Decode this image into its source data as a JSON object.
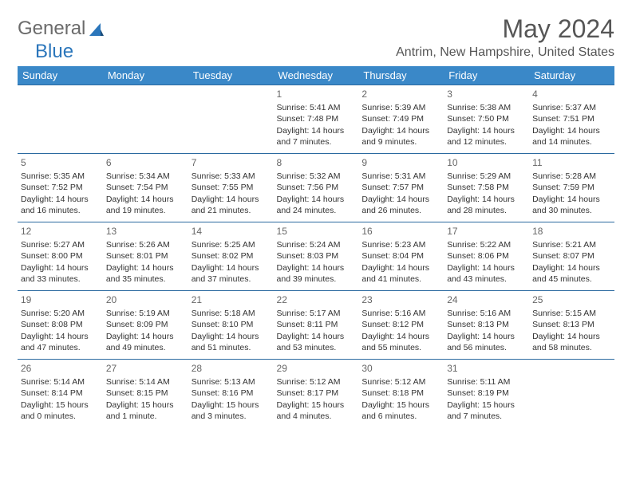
{
  "logo": {
    "general": "General",
    "blue": "Blue"
  },
  "title": "May 2024",
  "location": "Antrim, New Hampshire, United States",
  "colors": {
    "header_bg": "#3a88c8",
    "header_text": "#ffffff",
    "border": "#2b6aa0",
    "text": "#333333",
    "title_text": "#565656",
    "logo_gray": "#6b6b6b",
    "logo_blue": "#2b76bb"
  },
  "day_headers": [
    "Sunday",
    "Monday",
    "Tuesday",
    "Wednesday",
    "Thursday",
    "Friday",
    "Saturday"
  ],
  "weeks": [
    [
      null,
      null,
      null,
      {
        "n": "1",
        "sr": "5:41 AM",
        "ss": "7:48 PM",
        "dl": "14 hours and 7 minutes."
      },
      {
        "n": "2",
        "sr": "5:39 AM",
        "ss": "7:49 PM",
        "dl": "14 hours and 9 minutes."
      },
      {
        "n": "3",
        "sr": "5:38 AM",
        "ss": "7:50 PM",
        "dl": "14 hours and 12 minutes."
      },
      {
        "n": "4",
        "sr": "5:37 AM",
        "ss": "7:51 PM",
        "dl": "14 hours and 14 minutes."
      }
    ],
    [
      {
        "n": "5",
        "sr": "5:35 AM",
        "ss": "7:52 PM",
        "dl": "14 hours and 16 minutes."
      },
      {
        "n": "6",
        "sr": "5:34 AM",
        "ss": "7:54 PM",
        "dl": "14 hours and 19 minutes."
      },
      {
        "n": "7",
        "sr": "5:33 AM",
        "ss": "7:55 PM",
        "dl": "14 hours and 21 minutes."
      },
      {
        "n": "8",
        "sr": "5:32 AM",
        "ss": "7:56 PM",
        "dl": "14 hours and 24 minutes."
      },
      {
        "n": "9",
        "sr": "5:31 AM",
        "ss": "7:57 PM",
        "dl": "14 hours and 26 minutes."
      },
      {
        "n": "10",
        "sr": "5:29 AM",
        "ss": "7:58 PM",
        "dl": "14 hours and 28 minutes."
      },
      {
        "n": "11",
        "sr": "5:28 AM",
        "ss": "7:59 PM",
        "dl": "14 hours and 30 minutes."
      }
    ],
    [
      {
        "n": "12",
        "sr": "5:27 AM",
        "ss": "8:00 PM",
        "dl": "14 hours and 33 minutes."
      },
      {
        "n": "13",
        "sr": "5:26 AM",
        "ss": "8:01 PM",
        "dl": "14 hours and 35 minutes."
      },
      {
        "n": "14",
        "sr": "5:25 AM",
        "ss": "8:02 PM",
        "dl": "14 hours and 37 minutes."
      },
      {
        "n": "15",
        "sr": "5:24 AM",
        "ss": "8:03 PM",
        "dl": "14 hours and 39 minutes."
      },
      {
        "n": "16",
        "sr": "5:23 AM",
        "ss": "8:04 PM",
        "dl": "14 hours and 41 minutes."
      },
      {
        "n": "17",
        "sr": "5:22 AM",
        "ss": "8:06 PM",
        "dl": "14 hours and 43 minutes."
      },
      {
        "n": "18",
        "sr": "5:21 AM",
        "ss": "8:07 PM",
        "dl": "14 hours and 45 minutes."
      }
    ],
    [
      {
        "n": "19",
        "sr": "5:20 AM",
        "ss": "8:08 PM",
        "dl": "14 hours and 47 minutes."
      },
      {
        "n": "20",
        "sr": "5:19 AM",
        "ss": "8:09 PM",
        "dl": "14 hours and 49 minutes."
      },
      {
        "n": "21",
        "sr": "5:18 AM",
        "ss": "8:10 PM",
        "dl": "14 hours and 51 minutes."
      },
      {
        "n": "22",
        "sr": "5:17 AM",
        "ss": "8:11 PM",
        "dl": "14 hours and 53 minutes."
      },
      {
        "n": "23",
        "sr": "5:16 AM",
        "ss": "8:12 PM",
        "dl": "14 hours and 55 minutes."
      },
      {
        "n": "24",
        "sr": "5:16 AM",
        "ss": "8:13 PM",
        "dl": "14 hours and 56 minutes."
      },
      {
        "n": "25",
        "sr": "5:15 AM",
        "ss": "8:13 PM",
        "dl": "14 hours and 58 minutes."
      }
    ],
    [
      {
        "n": "26",
        "sr": "5:14 AM",
        "ss": "8:14 PM",
        "dl": "15 hours and 0 minutes."
      },
      {
        "n": "27",
        "sr": "5:14 AM",
        "ss": "8:15 PM",
        "dl": "15 hours and 1 minute."
      },
      {
        "n": "28",
        "sr": "5:13 AM",
        "ss": "8:16 PM",
        "dl": "15 hours and 3 minutes."
      },
      {
        "n": "29",
        "sr": "5:12 AM",
        "ss": "8:17 PM",
        "dl": "15 hours and 4 minutes."
      },
      {
        "n": "30",
        "sr": "5:12 AM",
        "ss": "8:18 PM",
        "dl": "15 hours and 6 minutes."
      },
      {
        "n": "31",
        "sr": "5:11 AM",
        "ss": "8:19 PM",
        "dl": "15 hours and 7 minutes."
      },
      null
    ]
  ],
  "labels": {
    "sunrise": "Sunrise:",
    "sunset": "Sunset:",
    "daylight": "Daylight:"
  }
}
